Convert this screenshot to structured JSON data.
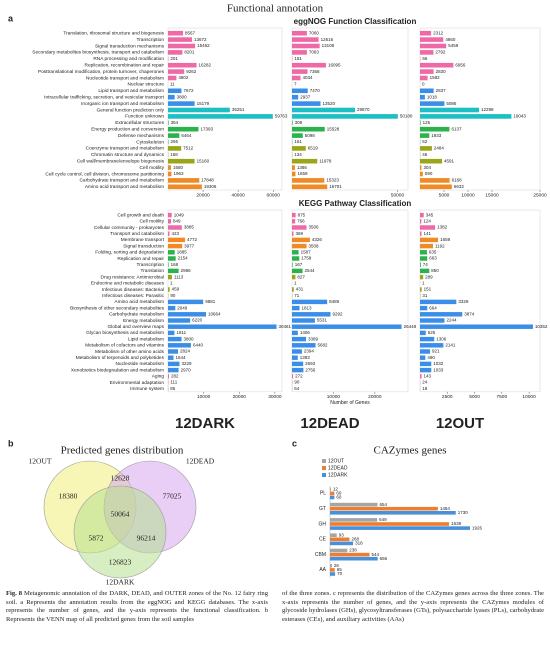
{
  "figure_title": "Functional annotation",
  "panel_labels": [
    "a",
    "b",
    "c"
  ],
  "chart_data": [
    {
      "type": "hbar-panels",
      "title": "eggNOG Function Classification",
      "categories": [
        "Translation, ribosomal structure and biogenesis",
        "Transcription",
        "Signal transduction mechanisms",
        "Secondary metabolites biosynthesis, transport and catabolism",
        "RNA processing and modification",
        "Replication, recombination and repair",
        "Posttranslational modification, protein turnover, chaperones",
        "Nucleotide transport and metabolism",
        "Nuclear structure",
        "Lipid transport and metabolism",
        "Intracellular trafficking, secretion, and vesicular transport",
        "Inorganic ion transport and metabolism",
        "General function prediction only",
        "Function unknown",
        "Extracellular structures",
        "Energy production and conversion",
        "Defense mechanisms",
        "Cytoskeleton",
        "Coenzyme transport and metabolism",
        "Chromatin structure and dynamics",
        "Cell wall/membrane/envelope biogenesis",
        "Cell motility",
        "Cell cycle control, cell division, chromosome partitioning",
        "Carbohydrate transport and metabolism",
        "Amino acid transport and metabolism"
      ],
      "colors": [
        "#ee6aa7",
        "#ee6aa7",
        "#ee6aa7",
        "#ee6aa7",
        "#ee6aa7",
        "#ee6aa7",
        "#ee6aa7",
        "#ee6aa7",
        "#3b8ee8",
        "#3b8ee8",
        "#3b8ee8",
        "#3b8ee8",
        "#1cbfc4",
        "#1cbfc4",
        "#2bb24c",
        "#2bb24c",
        "#2bb24c",
        "#2bb24c",
        "#9aa51a",
        "#9aa51a",
        "#9aa51a",
        "#f08a24",
        "#f08a24",
        "#f08a24",
        "#f08a24"
      ],
      "series": [
        {
          "values": [
            8567,
            13672,
            15462,
            8201,
            201,
            16282,
            9262,
            4802,
            11,
            7672,
            3800,
            15179,
            35251,
            59763,
            364,
            17393,
            6464,
            265,
            7512,
            168,
            15160,
            1680,
            1963,
            17848,
            19306
          ],
          "xlim": [
            0,
            65000
          ],
          "xticks": [
            20000,
            40000,
            60000
          ]
        },
        {
          "values": [
            7060,
            12616,
            13108,
            7063,
            151,
            16095,
            7368,
            4034,
            7,
            7470,
            2937,
            13520,
            29870,
            50180,
            308,
            15528,
            5098,
            161,
            6519,
            134,
            11978,
            1386,
            1659,
            15323,
            16701
          ],
          "xlim": [
            0,
            55000
          ],
          "xticks": [
            50000
          ]
        },
        {
          "values": [
            2312,
            4860,
            5459,
            2792,
            66,
            6956,
            2830,
            1582,
            0,
            2837,
            1018,
            5086,
            12298,
            19043,
            125,
            6137,
            1933,
            52,
            2484,
            46,
            4591,
            304,
            590,
            6168,
            6632
          ],
          "xlim": [
            0,
            25000
          ],
          "xticks": [
            5000,
            10000,
            15000,
            25000
          ]
        }
      ]
    },
    {
      "type": "hbar-panels",
      "title": "KEGG Pathway Classification",
      "x_label": "Number of Genes",
      "categories": [
        "Cell growth and death",
        "Cell motility",
        "Cellular community - prokaryotes",
        "Transport and catabolism",
        "Membrane transport",
        "Signal transduction",
        "Folding, sorting and degradation",
        "Replication and repair",
        "Transcription",
        "Translation",
        "Drug resistance: Antimicrobial",
        "Endocrine and metabolic diseases",
        "Infectious diseases: Bacterial",
        "Infectious diseases: Parasitic",
        "Amino acid metabolism",
        "Biosynthesis of other secondary metabolites",
        "Carbohydrate metabolism",
        "Energy metabolism",
        "Global and overview maps",
        "Glycan biosynthesis and metabolism",
        "Lipid metabolism",
        "Metabolism of cofactors and vitamins",
        "Metabolism of other amino acids",
        "Metabolism of terpenoids and polyketides",
        "Nucleotide metabolism",
        "Xenobiotics biodegradation and metabolism",
        "Aging",
        "Environmental adaptation",
        "Immune system"
      ],
      "colors": [
        "#ee6aa7",
        "#ee6aa7",
        "#ee6aa7",
        "#ee6aa7",
        "#f08a24",
        "#f08a24",
        "#2bb24c",
        "#2bb24c",
        "#2bb24c",
        "#2bb24c",
        "#9aa51a",
        "#9aa51a",
        "#9aa51a",
        "#9aa51a",
        "#3b8ee8",
        "#3b8ee8",
        "#3b8ee8",
        "#3b8ee8",
        "#3b8ee8",
        "#3b8ee8",
        "#3b8ee8",
        "#3b8ee8",
        "#3b8ee8",
        "#3b8ee8",
        "#3b8ee8",
        "#3b8ee8",
        "#ee6aa7",
        "#ee6aa7",
        "#ee6aa7"
      ],
      "series": [
        {
          "name": "12DARK",
          "values": [
            1049,
            849,
            3885,
            423,
            4772,
            3977,
            1885,
            2154,
            168,
            2986,
            1113,
            1,
            459,
            90,
            9881,
            2049,
            10664,
            6220,
            30461,
            1811,
            3800,
            6440,
            2824,
            1544,
            3229,
            2970,
            282,
            111,
            85
          ],
          "xlim": [
            0,
            32000
          ],
          "xticks": [
            10000,
            20000,
            30000
          ]
        },
        {
          "name": "12DEAD",
          "values": [
            875,
            766,
            3506,
            369,
            4326,
            3508,
            1587,
            1758,
            167,
            2544,
            827,
            1,
            431,
            71,
            8489,
            1813,
            9292,
            5531,
            26448,
            1406,
            3389,
            5682,
            2394,
            1393,
            2693,
            2756,
            272,
            90,
            64
          ],
          "xlim": [
            0,
            28000
          ],
          "xticks": [
            10000,
            20000
          ]
        },
        {
          "name": "12OUT",
          "values": [
            345,
            124,
            1382,
            141,
            1659,
            1192,
            635,
            663,
            74,
            850,
            289,
            1,
            151,
            31,
            3329,
            664,
            3874,
            2244,
            10352,
            525,
            1306,
            2141,
            921,
            490,
            1032,
            1033,
            143,
            24,
            18
          ],
          "xlim": [
            0,
            11000
          ],
          "xticks": [
            2500,
            5000,
            7500,
            10000
          ]
        }
      ]
    },
    {
      "type": "venn",
      "title": "Predicted genes distribution",
      "sets": [
        "12OUT",
        "12DEAD",
        "12DARK"
      ],
      "colors": [
        "#f2ee7a",
        "#d7a6ee",
        "#b5e08e"
      ],
      "values": [
        18380,
        77025,
        126823,
        12628,
        5872,
        96214,
        50064
      ]
    },
    {
      "type": "grouped-hbar",
      "title": "CAZymes genes",
      "categories": [
        "PL",
        "GT",
        "GH",
        "CE",
        "CBM",
        "AA"
      ],
      "series": [
        {
          "name": "12OUT",
          "color": "#a5a5a5",
          "values": [
            12,
            654,
            649,
            93,
            238,
            26
          ]
        },
        {
          "name": "12DEAD",
          "color": "#ed7d31",
          "values": [
            60,
            1484,
            1638,
            268,
            544,
            65
          ]
        },
        {
          "name": "12DARK",
          "color": "#4a90d9",
          "values": [
            60,
            1730,
            1926,
            318,
            656,
            70
          ]
        }
      ]
    }
  ],
  "caption": {
    "figure_label": "Fig. 8",
    "left": "Metagenomic annotation of the DARK, DEAD, and OUTER zones of the No. 12 fairy ring soil. a Represents the annotation results from the eggNOG and KEGG databases. The x-axis represents the number of genes, and the y-axis represents the functional classification. b Represents the VENN map of all predicted genes from the soil samples",
    "right": "of the three zones. c represents the distribution of the CAZymes genes across the three zones. The x-axis represents the number of genes, and the y-axis represents the CAZymes modules of glycoside hydrolases (GHs), glycosyltransferases (GTs), polysaccharide lyases (PLs), carbohydrate esterases (CEs), and auxiliary activities (AAs)"
  }
}
